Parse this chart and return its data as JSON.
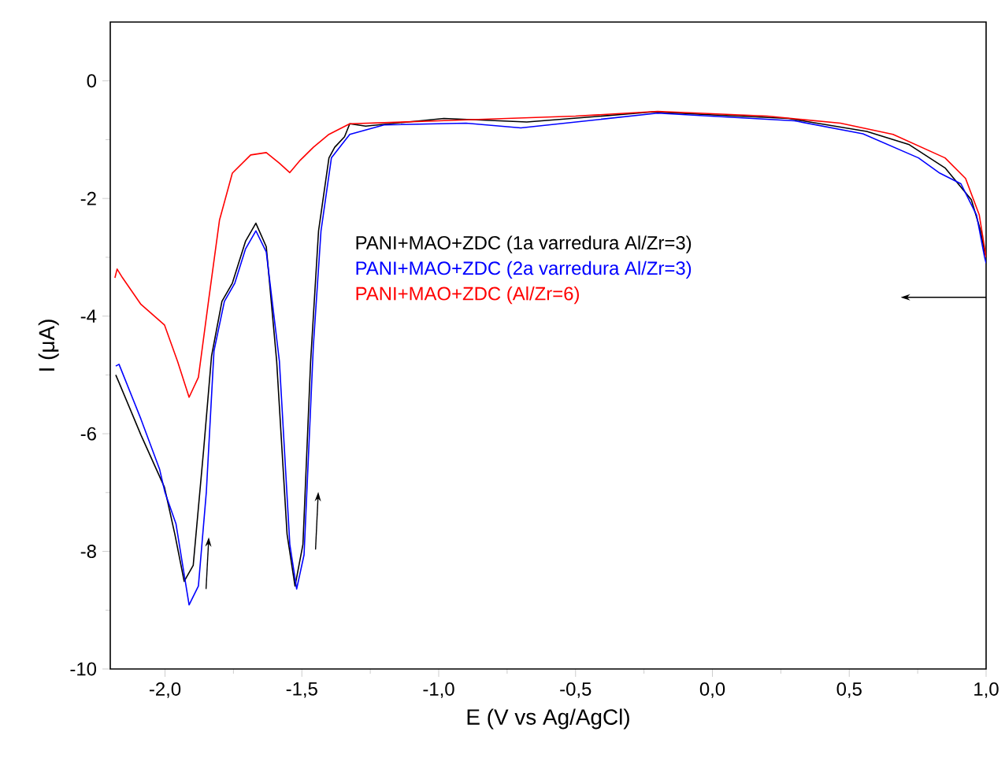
{
  "chart_data": {
    "type": "line",
    "xlabel": "E (V vs Ag/AgCl)",
    "ylabel": "I (μA)",
    "xlim": [
      -2.2,
      1.0
    ],
    "ylim": [
      -10,
      1
    ],
    "xticks": [
      {
        "value": -2.0,
        "label": "-2,0"
      },
      {
        "value": -1.5,
        "label": "-1,5"
      },
      {
        "value": -1.0,
        "label": "-1,0"
      },
      {
        "value": -0.5,
        "label": "-0,5"
      },
      {
        "value": 0.0,
        "label": "0,0"
      },
      {
        "value": 0.5,
        "label": "0,5"
      },
      {
        "value": 1.0,
        "label": "1,0"
      }
    ],
    "yticks": [
      -10,
      -8,
      -6,
      -4,
      -2,
      0
    ],
    "legend": "center",
    "series": [
      {
        "name": "PANI+MAO+ZDC (1a varredura Al/Zr=3)",
        "color": "#000000",
        "x": [
          -2.18,
          -2.168,
          -2.088,
          -2.002,
          -1.964,
          -1.93,
          -1.897,
          -1.859,
          -1.83,
          -1.792,
          -1.754,
          -1.706,
          -1.668,
          -1.63,
          -1.592,
          -1.554,
          -1.525,
          -1.496,
          -1.468,
          -1.439,
          -1.401,
          -1.38,
          -1.344,
          -1.325,
          -1.267,
          -0.981,
          -0.678,
          -0.22,
          0.278,
          0.564,
          0.717,
          0.85,
          0.946,
          0.98,
          0.994,
          1.0
        ],
        "values": [
          -5.0,
          -5.13,
          -6.02,
          -6.91,
          -7.71,
          -8.51,
          -8.24,
          -6.28,
          -4.68,
          -3.75,
          -3.44,
          -2.73,
          -2.42,
          -2.82,
          -4.77,
          -7.71,
          -8.59,
          -7.88,
          -4.77,
          -2.55,
          -1.31,
          -1.13,
          -0.95,
          -0.73,
          -0.77,
          -0.64,
          -0.7,
          -0.53,
          -0.64,
          -0.86,
          -1.08,
          -1.48,
          -2.02,
          -2.55,
          -2.9,
          -3.0
        ]
      },
      {
        "name": "PANI+MAO+ZDC (2a varredura Al/Zr=3)",
        "color": "#0000ff",
        "x": [
          -2.18,
          -2.168,
          -2.088,
          -2.02,
          -2.0,
          -1.96,
          -1.912,
          -1.878,
          -1.849,
          -1.821,
          -1.783,
          -1.745,
          -1.706,
          -1.668,
          -1.63,
          -1.582,
          -1.544,
          -1.519,
          -1.492,
          -1.458,
          -1.43,
          -1.392,
          -1.325,
          -1.2,
          -0.9,
          -0.7,
          -0.2,
          0.3,
          0.55,
          0.753,
          0.831,
          0.908,
          0.965,
          0.994,
          1.0
        ],
        "values": [
          -4.85,
          -4.82,
          -5.75,
          -6.6,
          -7.0,
          -7.53,
          -8.91,
          -8.59,
          -6.99,
          -4.59,
          -3.75,
          -3.44,
          -2.86,
          -2.55,
          -2.91,
          -4.77,
          -7.88,
          -8.64,
          -8.06,
          -4.51,
          -2.55,
          -1.31,
          -0.91,
          -0.75,
          -0.72,
          -0.8,
          -0.55,
          -0.68,
          -0.9,
          -1.31,
          -1.57,
          -1.75,
          -2.28,
          -2.99,
          -3.1
        ]
      },
      {
        "name": "PANI+MAO+ZDC (Al/Zr=6)",
        "color": "#ff0000",
        "x": [
          -2.183,
          -2.175,
          -2.155,
          -2.088,
          -2.002,
          -1.954,
          -1.912,
          -1.878,
          -1.84,
          -1.801,
          -1.754,
          -1.687,
          -1.63,
          -1.582,
          -1.544,
          -1.506,
          -1.458,
          -1.401,
          -1.325,
          -1.0,
          -0.5,
          -0.2,
          0.2,
          0.468,
          0.66,
          0.85,
          0.925,
          0.975,
          1.0
        ],
        "values": [
          -3.35,
          -3.2,
          -3.35,
          -3.8,
          -4.15,
          -4.77,
          -5.38,
          -5.04,
          -3.71,
          -2.37,
          -1.57,
          -1.26,
          -1.22,
          -1.4,
          -1.56,
          -1.35,
          -1.13,
          -0.91,
          -0.73,
          -0.68,
          -0.6,
          -0.52,
          -0.6,
          -0.72,
          -0.91,
          -1.31,
          -1.66,
          -2.28,
          -3.0
        ]
      }
    ]
  }
}
